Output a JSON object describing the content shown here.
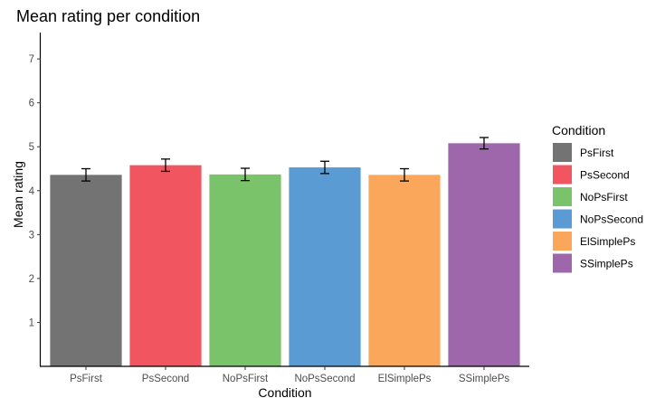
{
  "chart_data": {
    "type": "bar",
    "title": "Mean rating per condition",
    "xlabel": "Condition",
    "ylabel": "Mean rating",
    "ylim": [
      0,
      7.6
    ],
    "yticks": [
      1,
      2,
      3,
      4,
      5,
      6,
      7
    ],
    "grid": false,
    "legend": {
      "title": "Condition",
      "position": "right"
    },
    "categories": [
      "PsFirst",
      "PsSecond",
      "NoPsFirst",
      "NoPsSecond",
      "ElSimplePs",
      "SSimplePs"
    ],
    "values": [
      4.36,
      4.58,
      4.37,
      4.53,
      4.36,
      5.08
    ],
    "error_low": [
      4.22,
      4.44,
      4.23,
      4.39,
      4.22,
      4.95
    ],
    "error_high": [
      4.5,
      4.72,
      4.51,
      4.67,
      4.5,
      5.21
    ],
    "colors": [
      "#737373",
      "#F15560",
      "#7AC36A",
      "#5A9BD4",
      "#FAA75B",
      "#9E66AB"
    ]
  }
}
